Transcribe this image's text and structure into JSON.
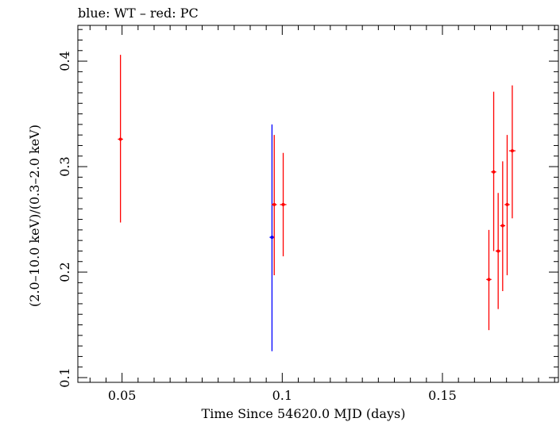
{
  "chart_data": {
    "type": "scatter",
    "title": "blue: WT – red: PC",
    "xlabel": "Time Since 54620.0 MJD (days)",
    "ylabel": "(2.0–10.0 keV)/(0.3–2.0 keV)",
    "xlim": [
      0.0362,
      0.1862
    ],
    "ylim": [
      0.0955,
      0.4339
    ],
    "x_ticks": [
      0.05,
      0.1,
      0.15
    ],
    "x_tick_labels": [
      "0.05",
      "0.1",
      "0.15"
    ],
    "y_ticks": [
      0.1,
      0.2,
      0.3,
      0.4
    ],
    "y_tick_labels": [
      "0.1",
      "0.2",
      "0.3",
      "0.4"
    ],
    "grid": false,
    "series": [
      {
        "color": "#0000ff",
        "points": [
          {
            "x": 0.0968,
            "y": 0.233,
            "xerr": 0.0003,
            "ylo": 0.125,
            "yhi": 0.34
          }
        ]
      },
      {
        "color": "#ff0000",
        "points": [
          {
            "x": 0.0495,
            "y": 0.326,
            "xerr": 0.0008,
            "ylo": 0.247,
            "yhi": 0.406
          },
          {
            "x": 0.0975,
            "y": 0.264,
            "xerr": 0.0008,
            "ylo": 0.197,
            "yhi": 0.33
          },
          {
            "x": 0.1003,
            "y": 0.264,
            "xerr": 0.001,
            "ylo": 0.215,
            "yhi": 0.313
          },
          {
            "x": 0.1645,
            "y": 0.193,
            "xerr": 0.0008,
            "ylo": 0.145,
            "yhi": 0.24
          },
          {
            "x": 0.166,
            "y": 0.295,
            "xerr": 0.0008,
            "ylo": 0.22,
            "yhi": 0.371
          },
          {
            "x": 0.1674,
            "y": 0.22,
            "xerr": 0.0008,
            "ylo": 0.165,
            "yhi": 0.275
          },
          {
            "x": 0.1688,
            "y": 0.244,
            "xerr": 0.0008,
            "ylo": 0.182,
            "yhi": 0.305
          },
          {
            "x": 0.1702,
            "y": 0.264,
            "xerr": 0.0008,
            "ylo": 0.197,
            "yhi": 0.33
          },
          {
            "x": 0.1718,
            "y": 0.315,
            "xerr": 0.001,
            "ylo": 0.251,
            "yhi": 0.377
          }
        ]
      }
    ]
  }
}
